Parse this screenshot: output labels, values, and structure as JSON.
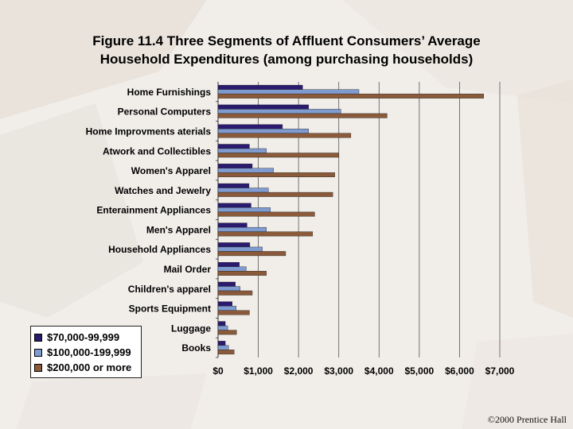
{
  "slide": {
    "title_line1": "Figure 11.4  Three Segments of Affluent Consumers’ Average",
    "title_line2": "Household Expenditures (among purchasing households)",
    "copyright": "©2000 Prentice Hall"
  },
  "chart_data": {
    "type": "bar",
    "orientation": "horizontal",
    "title": "Figure 11.4  Three Segments of Affluent Consumers’ Average Household Expenditures (among purchasing households)",
    "categories": [
      "Home Furnishings",
      "Personal Computers",
      "Home Improvments aterials",
      "Atwork and Collectibles",
      "Women's Apparel",
      "Watches and Jewelry",
      "Enterainment Appliances",
      "Men's Apparel",
      "Household Appliances",
      "Mail Order",
      "Children's apparel",
      "Sports Equipment",
      "Luggage",
      "Books"
    ],
    "series": [
      {
        "name": "$70,000-99,999",
        "color": "#2a1b6e",
        "values": [
          2100,
          2250,
          1600,
          780,
          850,
          770,
          820,
          720,
          790,
          530,
          430,
          350,
          180,
          180
        ]
      },
      {
        "name": "$100,000-199,999",
        "color": "#7f9bd0",
        "values": [
          3500,
          3050,
          2250,
          1200,
          1380,
          1250,
          1300,
          1200,
          1100,
          700,
          550,
          450,
          240,
          260
        ]
      },
      {
        "name": "$200,000 or more",
        "color": "#8a5a3a",
        "values": [
          6600,
          4200,
          3300,
          3000,
          2900,
          2850,
          2400,
          2350,
          1680,
          1200,
          850,
          780,
          460,
          400
        ]
      }
    ],
    "xlim": [
      0,
      7000
    ],
    "xticks": [
      "$0",
      "$1,000",
      "$2,000",
      "$3,000",
      "$4,000",
      "$5,000",
      "$6,000",
      "$7,000"
    ],
    "xtick_values": [
      0,
      1000,
      2000,
      3000,
      4000,
      5000,
      6000,
      7000
    ],
    "grid": "vertical",
    "legend_position": "bottom-left"
  }
}
